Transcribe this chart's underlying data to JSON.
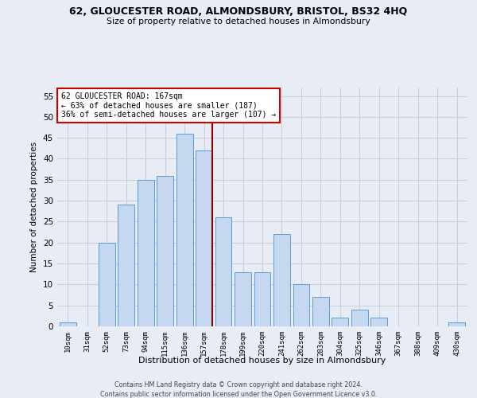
{
  "title": "62, GLOUCESTER ROAD, ALMONDSBURY, BRISTOL, BS32 4HQ",
  "subtitle": "Size of property relative to detached houses in Almondsbury",
  "xlabel": "Distribution of detached houses by size in Almondsbury",
  "ylabel": "Number of detached properties",
  "categories": [
    "10sqm",
    "31sqm",
    "52sqm",
    "73sqm",
    "94sqm",
    "115sqm",
    "136sqm",
    "157sqm",
    "178sqm",
    "199sqm",
    "220sqm",
    "241sqm",
    "262sqm",
    "283sqm",
    "304sqm",
    "325sqm",
    "346sqm",
    "367sqm",
    "388sqm",
    "409sqm",
    "430sqm"
  ],
  "values": [
    1,
    0,
    20,
    29,
    35,
    36,
    46,
    42,
    26,
    13,
    13,
    22,
    10,
    7,
    2,
    4,
    2,
    0,
    0,
    0,
    1
  ],
  "bar_color": "#c5d8f0",
  "bar_edge_color": "#5b9bd5",
  "vline_color": "#8b0000",
  "annotation_text": "62 GLOUCESTER ROAD: 167sqm\n← 63% of detached houses are smaller (187)\n36% of semi-detached houses are larger (107) →",
  "annotation_box_color": "#ffffff",
  "annotation_box_edge_color": "#cc0000",
  "ylim": [
    0,
    57
  ],
  "yticks": [
    0,
    5,
    10,
    15,
    20,
    25,
    30,
    35,
    40,
    45,
    50,
    55
  ],
  "grid_color": "#c8d0dc",
  "background_color": "#e8edf5",
  "footer_line1": "Contains HM Land Registry data © Crown copyright and database right 2024.",
  "footer_line2": "Contains public sector information licensed under the Open Government Licence v3.0."
}
